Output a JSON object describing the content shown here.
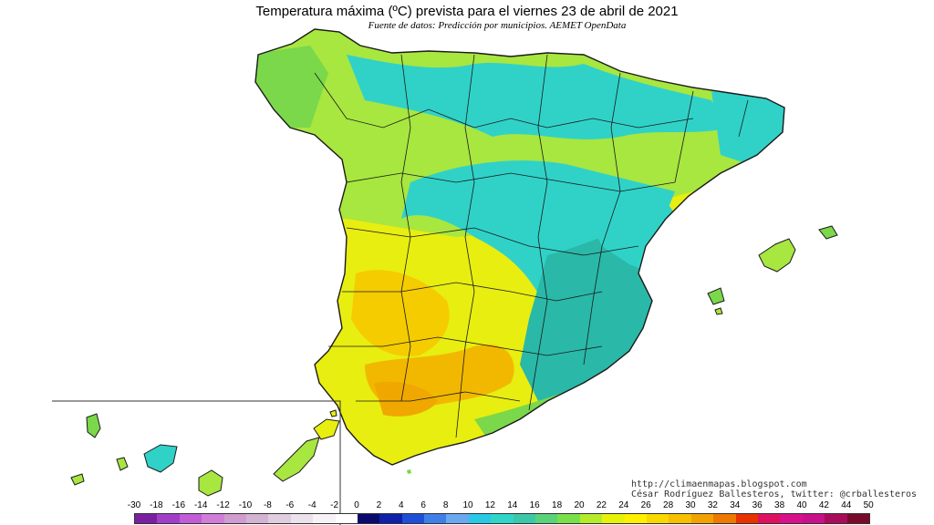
{
  "title": "Temperatura máxima (ºC) prevista para el viernes 23 de abril de 2021",
  "subtitle": "Fuente de datos: Predicción por municipios. AEMET OpenData",
  "credits": {
    "line1": "http://climaenmapas.blogspot.com",
    "line2": "César Rodríguez Ballesteros, twitter: @crballesteros"
  },
  "legend": {
    "ticks": [
      "-30",
      "-18",
      "-16",
      "-14",
      "-12",
      "-10",
      "-8",
      "-6",
      "-4",
      "-2",
      "0",
      "2",
      "4",
      "6",
      "8",
      "10",
      "12",
      "14",
      "16",
      "18",
      "20",
      "22",
      "24",
      "26",
      "28",
      "30",
      "32",
      "34",
      "36",
      "38",
      "40",
      "42",
      "44",
      "50"
    ],
    "colors": [
      "#7a1fa2",
      "#a13ec9",
      "#c25bd6",
      "#d07cd8",
      "#cf9ccf",
      "#d3b3d3",
      "#e0cde0",
      "#ece2ec",
      "#f6f2f6",
      "#ffffff",
      "#0a0a6e",
      "#1020a8",
      "#1f4fd6",
      "#3f7fe6",
      "#6aa8f0",
      "#28c8e6",
      "#2fd6c8",
      "#3ac8a8",
      "#5ad27a",
      "#7ae04a",
      "#b4ec2a",
      "#e6f20a",
      "#fff000",
      "#f8d800",
      "#f6c000",
      "#f2a200",
      "#ee7800",
      "#e83200",
      "#e01060",
      "#d8108a",
      "#c8108a",
      "#a80c5a",
      "#7a0a2a"
    ]
  },
  "colors": {
    "sea": "#ffffff",
    "border": "#1a1a1a",
    "warm": "#f2b800",
    "yellow": "#e8ee10",
    "lime": "#a8e640",
    "green": "#7ad84a",
    "cyan": "#30d2c8",
    "teal": "#2ab8a8"
  }
}
